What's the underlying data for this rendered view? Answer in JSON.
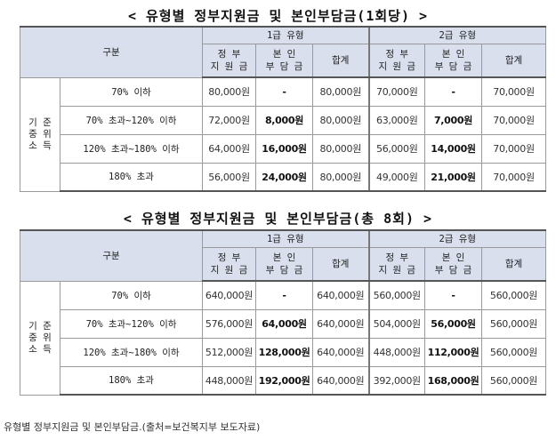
{
  "table1": {
    "title": "< 유형별 정부지원금 및 본인부담금(1회당) >",
    "header": {
      "category": "구분",
      "group1": "1급 유형",
      "group2": "2급 유형",
      "gov": [
        "정 부",
        "지 원 금"
      ],
      "self": [
        "본 인",
        "부 담 금"
      ],
      "total": "합계"
    },
    "category_label": [
      "기 준",
      "중 위",
      "소 득"
    ],
    "rows": [
      {
        "band": "70% 이하",
        "g1_gov": "80,000원",
        "g1_self": "-",
        "g1_total": "80,000원",
        "g2_gov": "70,000원",
        "g2_self": "-",
        "g2_total": "70,000원"
      },
      {
        "band": "70% 초과~120% 이하",
        "g1_gov": "72,000원",
        "g1_self": "8,000원",
        "g1_total": "80,000원",
        "g2_gov": "63,000원",
        "g2_self": "7,000원",
        "g2_total": "70,000원"
      },
      {
        "band": "120% 초과~180% 이하",
        "g1_gov": "64,000원",
        "g1_self": "16,000원",
        "g1_total": "80,000원",
        "g2_gov": "56,000원",
        "g2_self": "14,000원",
        "g2_total": "70,000원"
      },
      {
        "band": "180% 초과",
        "g1_gov": "56,000원",
        "g1_self": "24,000원",
        "g1_total": "80,000원",
        "g2_gov": "49,000원",
        "g2_self": "21,000원",
        "g2_total": "70,000원"
      }
    ]
  },
  "table2": {
    "title": "< 유형별 정부지원금 및 본인부담금(총 8회) >",
    "header": {
      "category": "구분",
      "group1": "1급 유형",
      "group2": "2급 유형",
      "gov": [
        "정 부",
        "지 원 금"
      ],
      "self": [
        "본 인",
        "부 담 금"
      ],
      "total": "합계"
    },
    "category_label": [
      "기 준",
      "중 위",
      "소 득"
    ],
    "rows": [
      {
        "band": "70% 이하",
        "g1_gov": "640,000원",
        "g1_self": "-",
        "g1_total": "640,000원",
        "g2_gov": "560,000원",
        "g2_self": "-",
        "g2_total": "560,000원"
      },
      {
        "band": "70% 초과~120% 이하",
        "g1_gov": "576,000원",
        "g1_self": "64,000원",
        "g1_total": "640,000원",
        "g2_gov": "504,000원",
        "g2_self": "56,000원",
        "g2_total": "560,000원"
      },
      {
        "band": "120% 초과~180% 이하",
        "g1_gov": "512,000원",
        "g1_self": "128,000원",
        "g1_total": "640,000원",
        "g2_gov": "448,000원",
        "g2_self": "112,000원",
        "g2_total": "560,000원"
      },
      {
        "band": "180% 초과",
        "g1_gov": "448,000원",
        "g1_self": "192,000원",
        "g1_total": "640,000원",
        "g2_gov": "392,000원",
        "g2_self": "168,000원",
        "g2_total": "560,000원"
      }
    ]
  },
  "caption": "유형별 정부지원금 및 본인부담금.(출처=보건복지부 보도자료)",
  "colors": {
    "header_bg": "#d9dfed",
    "border": "#9a9a9a"
  }
}
